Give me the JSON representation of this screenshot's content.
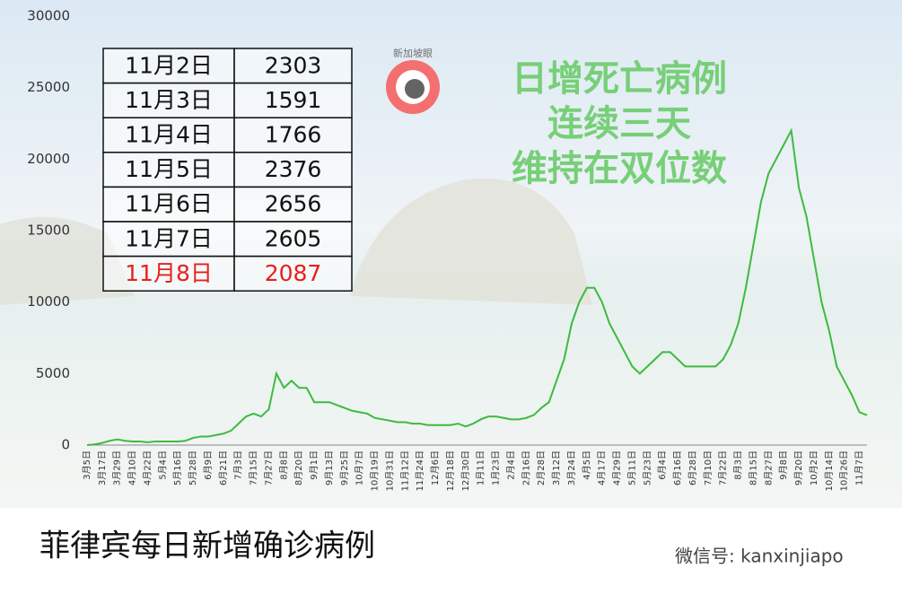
{
  "chart_data": {
    "type": "line",
    "title": "菲律宾每日新增确诊病例",
    "annotation": [
      "日增死亡病例",
      "连续三天",
      "维持在双位数"
    ],
    "logo": "新加坡眼",
    "watermark": "微信号: kanxinjiapo",
    "ylim": [
      0,
      30000
    ],
    "yticks": [
      0,
      5000,
      10000,
      15000,
      20000,
      25000,
      30000
    ],
    "categories": [
      "3月5日",
      null,
      "3月17日",
      null,
      "3月29日",
      null,
      "4月10日",
      null,
      "4月22日",
      null,
      "5月4日",
      null,
      "5月16日",
      null,
      "5月28日",
      null,
      "6月9日",
      null,
      "6月21日",
      null,
      "7月3日",
      null,
      "7月15日",
      null,
      "7月27日",
      null,
      "8月8日",
      null,
      "8月20日",
      null,
      "9月1日",
      null,
      "9月13日",
      null,
      "9月25日",
      null,
      "10月7日",
      null,
      "10月19日",
      null,
      "10月31日",
      null,
      "11月12日",
      null,
      "11月24日",
      null,
      "12月6日",
      null,
      "12月18日",
      null,
      "12月30日",
      null,
      "1月11日",
      null,
      "1月23日",
      null,
      "2月4日",
      null,
      "2月16日",
      null,
      "2月28日",
      null,
      "3月12日",
      null,
      "3月24日",
      null,
      "4月5日",
      null,
      "4月17日",
      null,
      "4月29日",
      null,
      "5月11日",
      null,
      "5月23日",
      null,
      "6月4日",
      null,
      "6月16日",
      null,
      "6月28日",
      null,
      "7月10日",
      null,
      "7月22日",
      null,
      "8月3日",
      null,
      "8月15日",
      null,
      "8月27日",
      null,
      "9月8日",
      null,
      "9月20日",
      null,
      "10月2日",
      null,
      "10月14日",
      null,
      "10月26日",
      null,
      "11月7日",
      null
    ],
    "series": [
      {
        "color": "#3dbb3d",
        "values": [
          0,
          50,
          150,
          300,
          400,
          300,
          250,
          250,
          200,
          250,
          250,
          250,
          250,
          300,
          500,
          600,
          600,
          700,
          800,
          1000,
          1500,
          2000,
          2200,
          2000,
          2500,
          5000,
          4000,
          4500,
          4000,
          4000,
          3000,
          3000,
          3000,
          2800,
          2600,
          2400,
          2300,
          2200,
          1900,
          1800,
          1700,
          1600,
          1600,
          1500,
          1500,
          1400,
          1400,
          1400,
          1400,
          1500,
          1300,
          1500,
          1800,
          2000,
          2000,
          1900,
          1800,
          1800,
          1900,
          2100,
          2600,
          3000,
          4500,
          6000,
          8500,
          10000,
          11000,
          11000,
          10000,
          8500,
          7500,
          6500,
          5500,
          5000,
          5500,
          6000,
          6500,
          6500,
          6000,
          5500,
          5500,
          5500,
          5500,
          5500,
          6000,
          7000,
          8500,
          11000,
          14000,
          17000,
          19000,
          20000,
          21000,
          22000,
          18000,
          16000,
          13000,
          10000,
          8000,
          5500,
          4500,
          3500,
          2300,
          2087
        ]
      }
    ],
    "table": {
      "rows": [
        [
          "11月2日",
          2303
        ],
        [
          "11月3日",
          1591
        ],
        [
          "11月4日",
          1766
        ],
        [
          "11月5日",
          2376
        ],
        [
          "11月6日",
          2656
        ],
        [
          "11月7日",
          2605
        ],
        [
          "11月8日",
          2087
        ]
      ],
      "highlight_color": "#e8201c"
    }
  }
}
